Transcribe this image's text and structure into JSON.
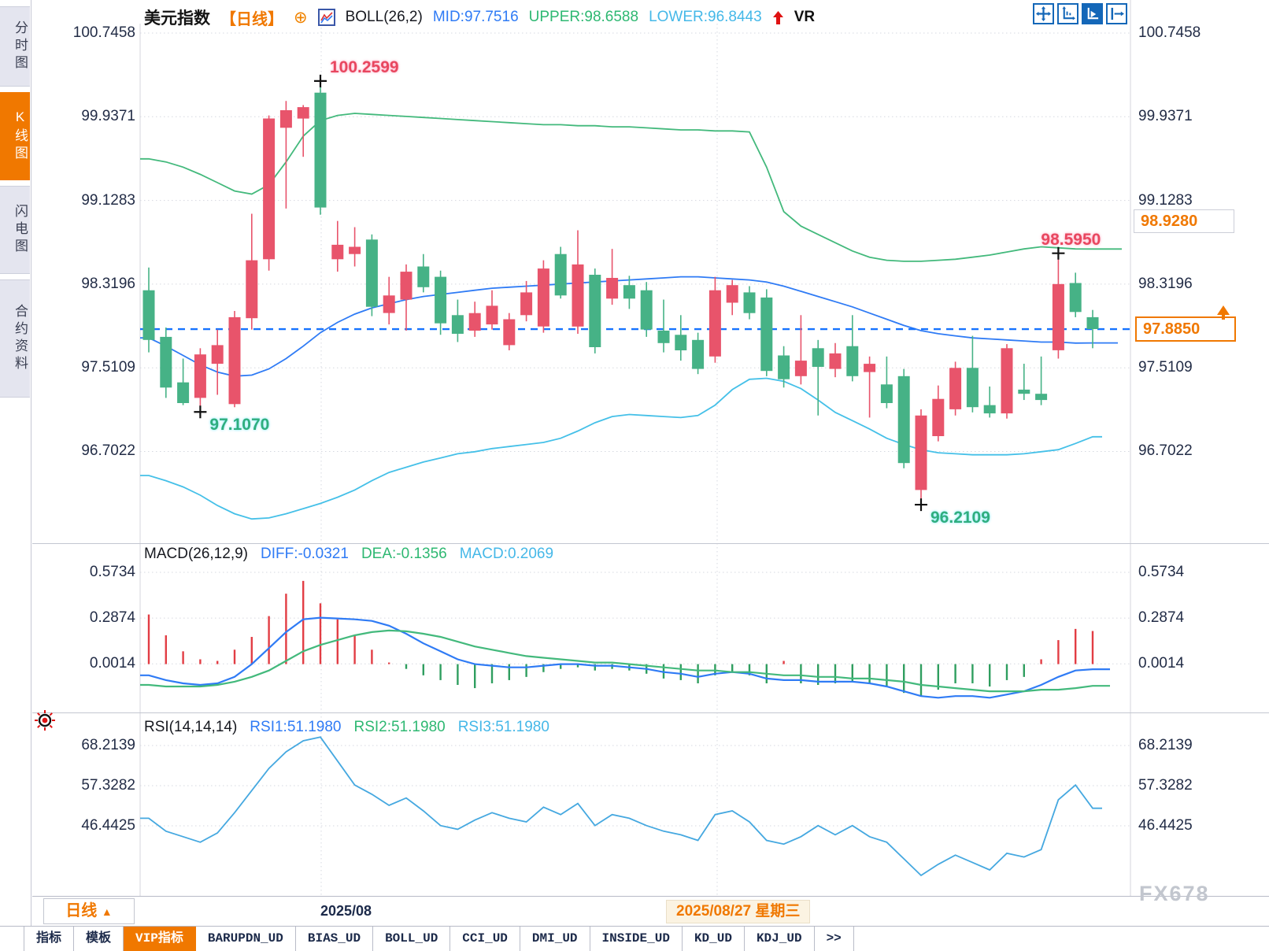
{
  "header": {
    "symbol": "美元指数",
    "period_tag": "【日线】",
    "indicator_label": "BOLL(26,2)",
    "mid_label": "MID:97.7516",
    "upper_label": "UPPER:98.6588",
    "lower_label": "LOWER:96.8443",
    "vr_label": "VR",
    "accent_orange": "#f07800",
    "mid_color": "#2f7bf5",
    "upper_color": "#2eb872",
    "lower_color": "#45b8e8"
  },
  "toolbar_icons": [
    "move-icon",
    "axis-zoom-icon",
    "axis-scale-icon",
    "exit-right-icon"
  ],
  "sidebar": {
    "items": [
      {
        "label": "分时图",
        "active": false
      },
      {
        "label": "K线图",
        "active": true
      },
      {
        "label": "闪电图",
        "active": false
      },
      {
        "label": "合约资料",
        "active": false
      }
    ]
  },
  "main_axis": {
    "labels": [
      "100.7458",
      "99.9371",
      "99.1283",
      "98.3196",
      "97.5109",
      "96.7022"
    ]
  },
  "price_tags": {
    "upper": {
      "text": "98.9280",
      "value": 98.928
    },
    "current": {
      "text": "97.8850",
      "value": 97.885
    }
  },
  "macd": {
    "title": "MACD(26,12,9)",
    "diff_label": "DIFF:-0.0321",
    "dea_label": "DEA:-0.1356",
    "macd_label": "MACD:0.2069",
    "axis_labels": [
      "0.5734",
      "0.2874",
      "0.0014"
    ]
  },
  "rsi": {
    "title": "RSI(14,14,14)",
    "rsi1_label": "RSI1:51.1980",
    "rsi2_label": "RSI2:51.1980",
    "rsi3_label": "RSI3:51.1980",
    "axis_labels": [
      "68.2139",
      "57.3282",
      "46.4425"
    ]
  },
  "time_axis": {
    "period_label": "日线",
    "period_arrow": "▲",
    "month_label": "2025/08",
    "date_label": "2025/08/27 星期三"
  },
  "watermark": "FX678",
  "bottom_tabs": [
    {
      "label": "指标",
      "active": false
    },
    {
      "label": "模板",
      "active": false
    },
    {
      "label": "VIP指标",
      "active": true
    },
    {
      "label": "BARUPDN_UD",
      "active": false
    },
    {
      "label": "BIAS_UD",
      "active": false
    },
    {
      "label": "BOLL_UD",
      "active": false
    },
    {
      "label": "CCI_UD",
      "active": false
    },
    {
      "label": "DMI_UD",
      "active": false
    },
    {
      "label": "INSIDE_UD",
      "active": false
    },
    {
      "label": "KD_UD",
      "active": false
    },
    {
      "label": "KDJ_UD",
      "active": false
    },
    {
      "label": ">>",
      "active": false
    }
  ],
  "chart_data": {
    "type": "candlestick",
    "title": "美元指数 日线 (US Dollar Index, daily)",
    "y_axis_ticks": [
      100.7458,
      99.9371,
      99.1283,
      98.3196,
      97.5109,
      96.7022
    ],
    "current_price": 97.885,
    "boll_params": {
      "n": 26,
      "k": 2,
      "mid": 97.7516,
      "upper": 98.6588,
      "lower": 96.8443
    },
    "candles": [
      [
        98.26,
        98.48,
        97.66,
        97.78
      ],
      [
        97.81,
        97.9,
        97.22,
        97.32
      ],
      [
        97.37,
        97.6,
        97.15,
        97.17
      ],
      [
        97.22,
        97.7,
        97.107,
        97.64
      ],
      [
        97.55,
        97.88,
        97.25,
        97.73
      ],
      [
        97.16,
        98.06,
        97.13,
        98.0
      ],
      [
        97.99,
        99.0,
        97.88,
        98.55
      ],
      [
        98.56,
        99.95,
        98.45,
        99.92
      ],
      [
        99.83,
        100.09,
        99.05,
        100.0
      ],
      [
        99.92,
        100.05,
        99.55,
        100.03
      ],
      [
        100.17,
        100.2599,
        98.99,
        99.06
      ],
      [
        98.56,
        98.93,
        98.44,
        98.7
      ],
      [
        98.61,
        98.87,
        98.49,
        98.68
      ],
      [
        98.75,
        98.8,
        98.01,
        98.1
      ],
      [
        98.04,
        98.39,
        97.93,
        98.21
      ],
      [
        98.17,
        98.51,
        97.87,
        98.44
      ],
      [
        98.49,
        98.61,
        98.24,
        98.29
      ],
      [
        98.39,
        98.45,
        97.83,
        97.94
      ],
      [
        98.02,
        98.17,
        97.76,
        97.84
      ],
      [
        97.87,
        98.15,
        97.81,
        98.04
      ],
      [
        97.93,
        98.26,
        97.88,
        98.11
      ],
      [
        97.73,
        98.04,
        97.68,
        97.98
      ],
      [
        98.02,
        98.35,
        97.96,
        98.24
      ],
      [
        97.91,
        98.55,
        97.85,
        98.47
      ],
      [
        98.61,
        98.68,
        98.18,
        98.21
      ],
      [
        97.91,
        98.84,
        97.84,
        98.51
      ],
      [
        98.41,
        98.47,
        97.65,
        97.71
      ],
      [
        98.18,
        98.66,
        98.12,
        98.38
      ],
      [
        98.31,
        98.4,
        98.08,
        98.18
      ],
      [
        98.26,
        98.34,
        97.81,
        97.88
      ],
      [
        97.87,
        98.17,
        97.66,
        97.75
      ],
      [
        97.83,
        98.02,
        97.58,
        97.68
      ],
      [
        97.78,
        97.85,
        97.45,
        97.5
      ],
      [
        97.62,
        98.39,
        97.56,
        98.26
      ],
      [
        98.14,
        98.36,
        98.02,
        98.31
      ],
      [
        98.24,
        98.3,
        97.98,
        98.04
      ],
      [
        98.19,
        98.27,
        97.43,
        97.48
      ],
      [
        97.63,
        97.72,
        97.32,
        97.4
      ],
      [
        97.43,
        98.02,
        97.35,
        97.58
      ],
      [
        97.7,
        97.78,
        97.05,
        97.52
      ],
      [
        97.5,
        97.75,
        97.42,
        97.65
      ],
      [
        97.72,
        98.02,
        97.38,
        97.43
      ],
      [
        97.47,
        97.62,
        97.03,
        97.55
      ],
      [
        97.35,
        97.62,
        97.12,
        97.17
      ],
      [
        97.43,
        97.5,
        96.54,
        96.59
      ],
      [
        96.33,
        97.11,
        96.2109,
        97.05
      ],
      [
        96.85,
        97.34,
        96.8,
        97.21
      ],
      [
        97.11,
        97.57,
        97.05,
        97.51
      ],
      [
        97.51,
        97.82,
        97.08,
        97.13
      ],
      [
        97.15,
        97.33,
        97.03,
        97.07
      ],
      [
        97.07,
        97.74,
        97.02,
        97.7
      ],
      [
        97.3,
        97.55,
        97.2,
        97.26
      ],
      [
        97.26,
        97.62,
        97.15,
        97.2
      ],
      [
        97.68,
        98.595,
        97.6,
        98.32
      ],
      [
        98.33,
        98.43,
        98.0,
        98.05
      ],
      [
        98.0,
        98.07,
        97.7,
        97.885
      ]
    ],
    "boll_upper_series": [
      99.53,
      99.5,
      99.45,
      99.38,
      99.3,
      99.22,
      99.19,
      99.28,
      99.5,
      99.75,
      99.9,
      99.95,
      99.97,
      99.96,
      99.95,
      99.94,
      99.93,
      99.92,
      99.91,
      99.9,
      99.89,
      99.88,
      99.87,
      99.86,
      99.86,
      99.85,
      99.85,
      99.84,
      99.84,
      99.83,
      99.82,
      99.81,
      99.81,
      99.8,
      99.8,
      99.79,
      99.45,
      99.02,
      98.88,
      98.8,
      98.72,
      98.64,
      98.58,
      98.55,
      98.54,
      98.54,
      98.55,
      98.56,
      98.58,
      98.6,
      98.63,
      98.66,
      98.68,
      98.67,
      98.66,
      98.6588
    ],
    "boll_mid_series": [
      97.8,
      97.72,
      97.63,
      97.54,
      97.47,
      97.43,
      97.44,
      97.5,
      97.6,
      97.72,
      97.85,
      97.95,
      98.03,
      98.09,
      98.13,
      98.17,
      98.2,
      98.22,
      98.24,
      98.26,
      98.28,
      98.29,
      98.3,
      98.31,
      98.32,
      98.33,
      98.34,
      98.35,
      98.36,
      98.37,
      98.38,
      98.39,
      98.39,
      98.38,
      98.37,
      98.36,
      98.34,
      98.3,
      98.25,
      98.2,
      98.15,
      98.1,
      98.04,
      97.98,
      97.92,
      97.87,
      97.84,
      97.82,
      97.8,
      97.79,
      97.78,
      97.77,
      97.76,
      97.76,
      97.75,
      97.7516
    ],
    "boll_lower_series": [
      96.47,
      96.42,
      96.36,
      96.28,
      96.18,
      96.1,
      96.05,
      96.06,
      96.1,
      96.15,
      96.2,
      96.26,
      96.33,
      96.42,
      96.5,
      96.55,
      96.6,
      96.64,
      96.68,
      96.7,
      96.73,
      96.75,
      96.77,
      96.79,
      96.83,
      96.9,
      96.98,
      97.04,
      97.06,
      97.05,
      97.04,
      97.03,
      97.05,
      97.15,
      97.3,
      97.4,
      97.41,
      97.38,
      97.31,
      97.2,
      97.08,
      97.0,
      96.92,
      96.83,
      96.77,
      96.72,
      96.69,
      96.68,
      96.67,
      96.67,
      96.67,
      96.68,
      96.7,
      96.72,
      96.78,
      96.8443
    ],
    "annotations": [
      {
        "text": "100.2599",
        "index": 10,
        "kind": "high",
        "dx": 12
      },
      {
        "text": "98.5950",
        "index": 53,
        "kind": "high",
        "dx": -22
      },
      {
        "text": "97.1070",
        "index": 3,
        "kind": "low",
        "dx": 12
      },
      {
        "text": "96.2109",
        "index": 45,
        "kind": "low",
        "dx": 12
      }
    ],
    "macd_panel": {
      "params": [
        26,
        12,
        9
      ],
      "diff": -0.0321,
      "dea": -0.1356,
      "macd": 0.2069,
      "axis_ticks": [
        0.5734,
        0.2874,
        0.0014
      ],
      "hist_series": [
        0.31,
        0.18,
        0.08,
        0.03,
        0.02,
        0.09,
        0.17,
        0.3,
        0.44,
        0.52,
        0.38,
        0.28,
        0.18,
        0.09,
        0.01,
        -0.03,
        -0.07,
        -0.1,
        -0.13,
        -0.15,
        -0.12,
        -0.1,
        -0.08,
        -0.05,
        -0.03,
        -0.02,
        -0.04,
        -0.03,
        -0.04,
        -0.06,
        -0.09,
        -0.1,
        -0.12,
        -0.07,
        -0.05,
        -0.07,
        -0.12,
        0.02,
        -0.12,
        -0.13,
        -0.12,
        -0.11,
        -0.12,
        -0.14,
        -0.18,
        -0.2,
        -0.16,
        -0.12,
        -0.12,
        -0.14,
        -0.1,
        -0.08,
        0.03,
        0.15,
        0.22,
        0.2069
      ],
      "diff_series": [
        -0.07,
        -0.1,
        -0.12,
        -0.13,
        -0.12,
        -0.08,
        0.0,
        0.1,
        0.2,
        0.28,
        0.29,
        0.285,
        0.28,
        0.27,
        0.24,
        0.19,
        0.13,
        0.08,
        0.03,
        0.0,
        -0.01,
        -0.02,
        -0.02,
        -0.01,
        0.0,
        0.0,
        -0.01,
        -0.01,
        -0.02,
        -0.03,
        -0.05,
        -0.06,
        -0.08,
        -0.06,
        -0.05,
        -0.06,
        -0.09,
        -0.1,
        -0.1,
        -0.11,
        -0.11,
        -0.11,
        -0.12,
        -0.14,
        -0.17,
        -0.2,
        -0.21,
        -0.2,
        -0.2,
        -0.21,
        -0.19,
        -0.17,
        -0.13,
        -0.08,
        -0.04,
        -0.0321
      ],
      "dea_series": [
        -0.13,
        -0.14,
        -0.14,
        -0.14,
        -0.13,
        -0.11,
        -0.08,
        -0.04,
        0.02,
        0.08,
        0.12,
        0.15,
        0.18,
        0.2,
        0.21,
        0.205,
        0.19,
        0.17,
        0.14,
        0.11,
        0.09,
        0.07,
        0.05,
        0.04,
        0.03,
        0.02,
        0.01,
        0.01,
        0.0,
        -0.01,
        -0.02,
        -0.03,
        -0.04,
        -0.04,
        -0.05,
        -0.05,
        -0.06,
        -0.07,
        -0.07,
        -0.08,
        -0.08,
        -0.09,
        -0.09,
        -0.1,
        -0.11,
        -0.13,
        -0.14,
        -0.15,
        -0.16,
        -0.17,
        -0.17,
        -0.17,
        -0.16,
        -0.16,
        -0.15,
        -0.1356
      ]
    },
    "rsi_panel": {
      "params": [
        14,
        14,
        14
      ],
      "rsi1": 51.198,
      "rsi2": 51.198,
      "rsi3": 51.198,
      "axis_ticks": [
        68.2139,
        57.3282,
        46.4425
      ],
      "series": [
        48.5,
        45.0,
        43.5,
        42.0,
        44.5,
        50.0,
        56.0,
        62.0,
        66.5,
        69.5,
        70.5,
        64.0,
        57.5,
        55.0,
        52.0,
        54.0,
        50.5,
        46.5,
        45.5,
        48.0,
        50.0,
        48.5,
        47.5,
        51.5,
        49.5,
        52.5,
        46.5,
        49.5,
        48.5,
        46.5,
        45.0,
        44.0,
        42.5,
        49.5,
        50.5,
        47.5,
        42.5,
        41.5,
        43.5,
        46.5,
        44.0,
        46.5,
        43.5,
        42.0,
        37.5,
        33.0,
        36.0,
        38.5,
        36.5,
        34.5,
        39.0,
        38.0,
        40.0,
        53.5,
        57.5,
        51.198
      ]
    },
    "colors": {
      "candle_up": "#e8546b",
      "candle_down": "#46b286",
      "boll_upper": "#43b97c",
      "boll_mid": "#2f7bf5",
      "boll_lower": "#45c0e8",
      "hist_pos": "#e23d44",
      "hist_neg": "#2f9e5f",
      "diff": "#2f7bf5",
      "dea": "#43b97c",
      "rsi": "#45a8e0",
      "current_dash": "#1673ff",
      "grid": "#d6d8e0"
    },
    "x_gridline_labels": [
      "2025/08"
    ],
    "selected_date": "2025/08/27 星期三"
  }
}
